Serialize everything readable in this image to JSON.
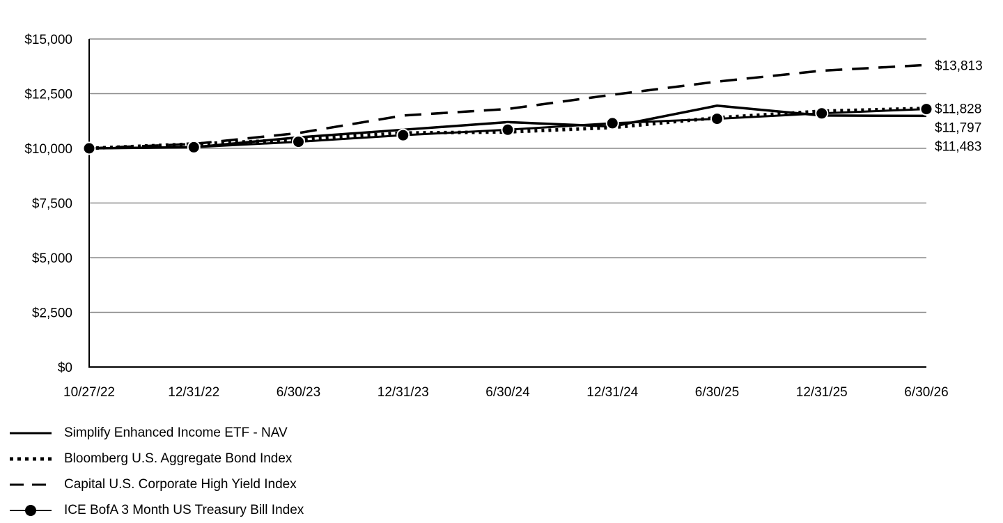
{
  "chart_data": {
    "type": "line",
    "title": "",
    "xlabel": "",
    "ylabel": "",
    "ylim": [
      0,
      15000
    ],
    "y_ticks": [
      "$0",
      "$2,500",
      "$5,000",
      "$7,500",
      "$10,000",
      "$12,500",
      "$15,000"
    ],
    "y_tick_values": [
      0,
      2500,
      5000,
      7500,
      10000,
      12500,
      15000
    ],
    "categories": [
      "10/27/22",
      "12/31/22",
      "6/30/23",
      "12/31/23",
      "6/30/24",
      "12/31/24",
      "6/30/25",
      "12/31/25",
      "6/30/26"
    ],
    "grid": true,
    "legend_position": "bottom-left",
    "series": [
      {
        "name": "Simplify Enhanced Income ETF - NAV",
        "style": "solid",
        "values": [
          10000,
          10050,
          10500,
          10850,
          11200,
          11000,
          11950,
          11500,
          11483
        ],
        "end_label": "$11,483"
      },
      {
        "name": "Bloomberg U.S. Aggregate Bond Index",
        "style": "dotted",
        "values": [
          10000,
          10200,
          10400,
          10700,
          10750,
          10950,
          11400,
          11700,
          11828
        ],
        "end_label": "$11,828"
      },
      {
        "name": "Capital U.S. Corporate High Yield Index",
        "style": "dashed",
        "values": [
          10000,
          10200,
          10700,
          11500,
          11800,
          12450,
          13050,
          13550,
          13813
        ],
        "end_label": "$13,813"
      },
      {
        "name": "ICE BofA 3 Month US Treasury Bill Index",
        "style": "marker",
        "values": [
          10000,
          10050,
          10300,
          10600,
          10850,
          11150,
          11350,
          11600,
          11797
        ],
        "end_label": "$11,797"
      }
    ],
    "colors": {
      "line": "#000000",
      "grid": "#8a8a8a",
      "axis": "#000000",
      "marker_stroke": "#ffffff"
    }
  }
}
